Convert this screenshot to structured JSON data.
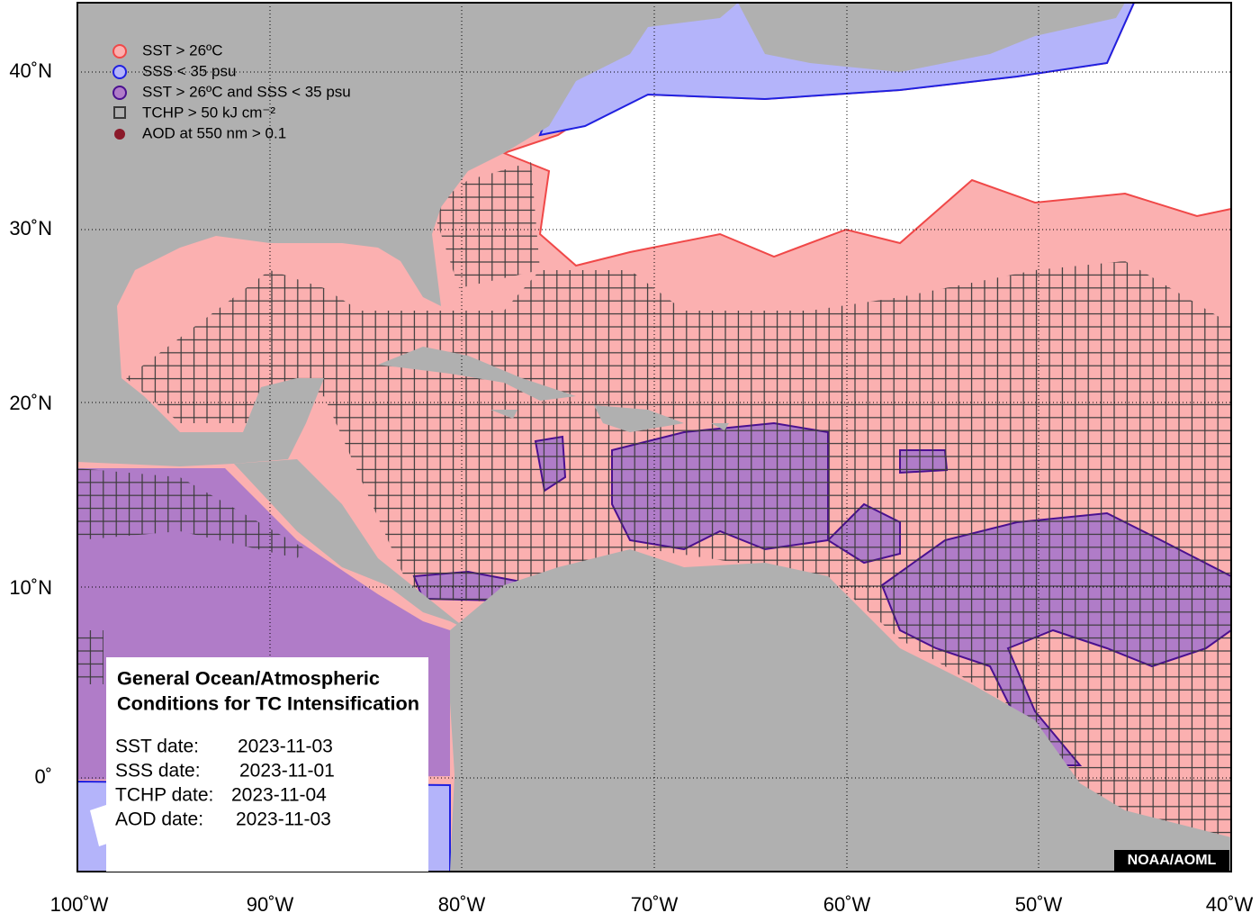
{
  "legend": [
    "SST > 26ºC",
    "SSS < 35 psu",
    "SST > 26ºC and SSS < 35 psu",
    "TCHP > 50 kJ cm⁻²",
    "AOD at 550 nm > 0.1"
  ],
  "info_box": {
    "title_lines": [
      "General Ocean/Atmospheric",
      "Conditions for TC Intensification"
    ],
    "dates": [
      {
        "label": "SST date:",
        "value": "2023-11-03"
      },
      {
        "label": "SSS date:",
        "value": "2023-11-01"
      },
      {
        "label": "TCHP date:",
        "value": "2023-11-04"
      },
      {
        "label": "AOD date:",
        "value": "2023-11-03"
      }
    ]
  },
  "x_axis_labels": [
    "100˚W",
    "90˚W",
    "80˚W",
    "70˚W",
    "60˚W",
    "50˚W",
    "40˚W"
  ],
  "y_axis_labels": [
    "40˚N",
    "30˚N",
    "20˚N",
    "10˚N",
    "0˚"
  ],
  "credit": "NOAA/AOML"
}
